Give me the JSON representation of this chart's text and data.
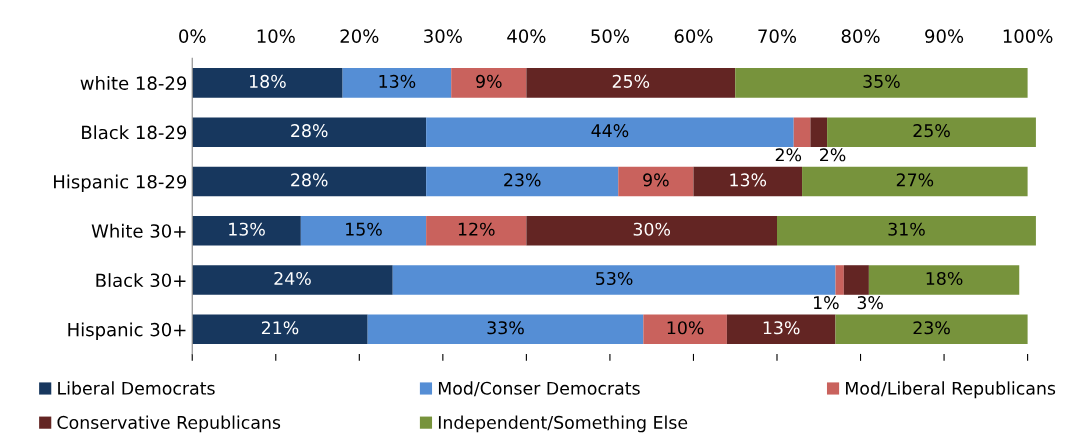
{
  "chart_data": {
    "type": "bar",
    "orientation": "horizontal",
    "stacked": true,
    "categories": [
      "white 18-29",
      "Black 18-29",
      "Hispanic 18-29",
      "White 30+",
      "Black 30+",
      "Hispanic 30+"
    ],
    "series": [
      {
        "name": "Liberal Democrats",
        "color": "#17375e",
        "values": [
          18,
          28,
          28,
          13,
          24,
          21
        ],
        "value_labels": [
          "18%",
          "28%",
          "28%",
          "13%",
          "24%",
          "21%"
        ]
      },
      {
        "name": "Mod/Conser Democrats",
        "color": "#558ed5",
        "values": [
          13,
          44,
          23,
          15,
          53,
          33
        ],
        "value_labels": [
          "13%",
          "44%",
          "23%",
          "15%",
          "53%",
          "33%"
        ]
      },
      {
        "name": "Mod/Liberal Republicans",
        "color": "#c9625d",
        "values": [
          9,
          2,
          9,
          12,
          1,
          10
        ],
        "value_labels": [
          "9%",
          "2%",
          "9%",
          "12%",
          "1%",
          "10%"
        ]
      },
      {
        "name": "Conservative Republicans",
        "color": "#632523",
        "values": [
          25,
          2,
          13,
          30,
          3,
          13
        ],
        "value_labels": [
          "25%",
          "2%",
          "13%",
          "30%",
          "3%",
          "13%"
        ]
      },
      {
        "name": "Independent/Something Else",
        "color": "#77933c",
        "values": [
          35,
          25,
          27,
          31,
          18,
          23
        ],
        "value_labels": [
          "35%",
          "25%",
          "27%",
          "31%",
          "18%",
          "23%"
        ]
      }
    ],
    "xlim": [
      0,
      101
    ],
    "xticks": [
      {
        "value": 0,
        "label": "0%"
      },
      {
        "value": 10,
        "label": "10%"
      },
      {
        "value": 20,
        "label": "20%"
      },
      {
        "value": 30,
        "label": "30%"
      },
      {
        "value": 40,
        "label": "40%"
      },
      {
        "value": 50,
        "label": "50%"
      },
      {
        "value": 60,
        "label": "60%"
      },
      {
        "value": 70,
        "label": "70%"
      },
      {
        "value": 80,
        "label": "80%"
      },
      {
        "value": 90,
        "label": "90%"
      },
      {
        "value": 100,
        "label": "100%"
      }
    ],
    "grid": false,
    "legend": "bottom"
  }
}
